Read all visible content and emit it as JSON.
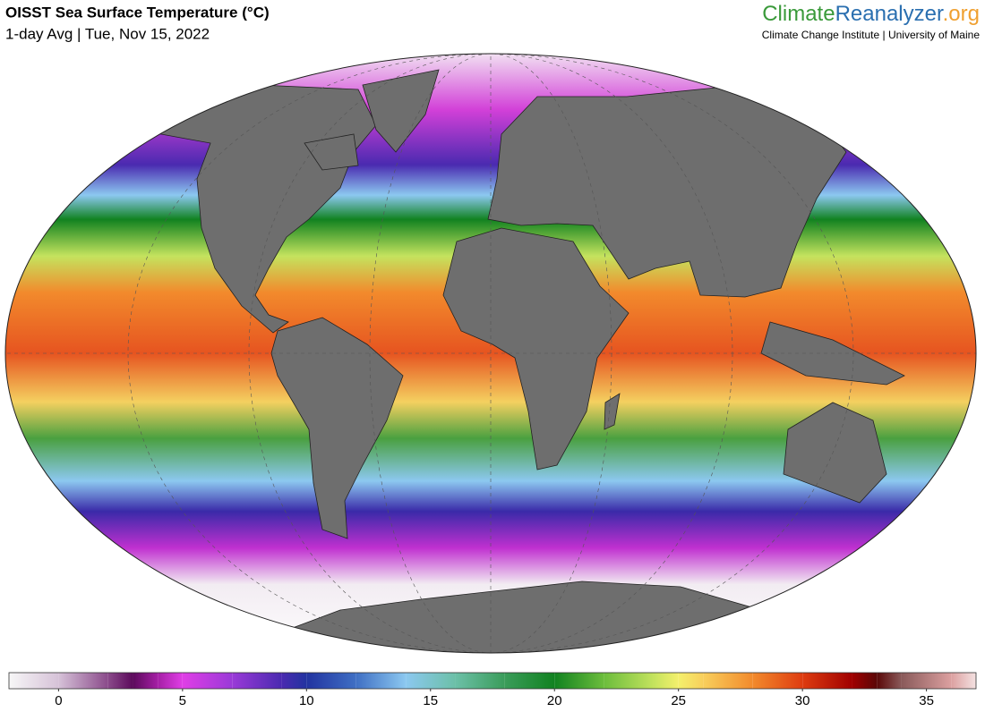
{
  "header": {
    "title": "OISST Sea Surface Temperature (°C)",
    "subtitle": "1-day Avg | Tue, Nov 15, 2022"
  },
  "brand": {
    "name": [
      "Climate",
      "Reanalyzer",
      ".org"
    ],
    "affiliation": "Climate Change Institute | University of Maine"
  },
  "colorbar": {
    "range": [
      -2,
      37
    ],
    "ticks": [
      0,
      5,
      10,
      15,
      20,
      25,
      30,
      35
    ],
    "stops": [
      {
        "value": -2,
        "color": "#f7f7f7"
      },
      {
        "value": 0,
        "color": "#d6c2d8"
      },
      {
        "value": 2,
        "color": "#8a4a8a"
      },
      {
        "value": 3,
        "color": "#5c0a5c"
      },
      {
        "value": 4,
        "color": "#a51fa5"
      },
      {
        "value": 5,
        "color": "#e03ee6"
      },
      {
        "value": 7,
        "color": "#9a3ad8"
      },
      {
        "value": 9,
        "color": "#4a2ab0"
      },
      {
        "value": 10,
        "color": "#2233a0"
      },
      {
        "value": 12,
        "color": "#3f6fc4"
      },
      {
        "value": 14,
        "color": "#8cc8f0"
      },
      {
        "value": 16,
        "color": "#6cc0a8"
      },
      {
        "value": 18,
        "color": "#3a9c5a"
      },
      {
        "value": 20,
        "color": "#118220"
      },
      {
        "value": 22,
        "color": "#6cbd3c"
      },
      {
        "value": 24,
        "color": "#c4e35e"
      },
      {
        "value": 25,
        "color": "#f4f06c"
      },
      {
        "value": 26,
        "color": "#f8cf5c"
      },
      {
        "value": 28,
        "color": "#f28a2c"
      },
      {
        "value": 30,
        "color": "#de3c10"
      },
      {
        "value": 32,
        "color": "#a00000"
      },
      {
        "value": 33,
        "color": "#5a0808"
      },
      {
        "value": 34,
        "color": "#8a5a5a"
      },
      {
        "value": 36,
        "color": "#dca0a0"
      },
      {
        "value": 37,
        "color": "#f4e2e2"
      }
    ]
  }
}
